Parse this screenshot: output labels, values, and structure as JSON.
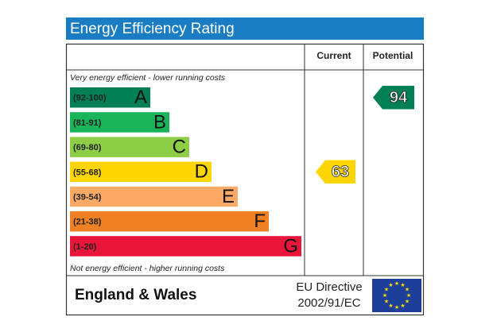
{
  "title": "Energy Efficiency Rating",
  "columns": {
    "current": "Current",
    "potential": "Potential"
  },
  "top_note": "Very energy efficient - lower running costs",
  "bottom_note": "Not energy efficient - higher running costs",
  "bands": [
    {
      "range": "(92-100)",
      "letter": "A",
      "color": "#008054"
    },
    {
      "range": "(81-91)",
      "letter": "B",
      "color": "#19b459"
    },
    {
      "range": "(69-80)",
      "letter": "C",
      "color": "#8dce46"
    },
    {
      "range": "(55-68)",
      "letter": "D",
      "color": "#ffd500"
    },
    {
      "range": "(39-54)",
      "letter": "E",
      "color": "#fcaa65"
    },
    {
      "range": "(21-38)",
      "letter": "F",
      "color": "#ef8023"
    },
    {
      "range": "(1-20)",
      "letter": "G",
      "color": "#e9153b"
    }
  ],
  "current": 63,
  "potential": 94,
  "footer": {
    "region": "England & Wales",
    "directive_line1": "EU Directive",
    "directive_line2": "2002/91/EC"
  }
}
